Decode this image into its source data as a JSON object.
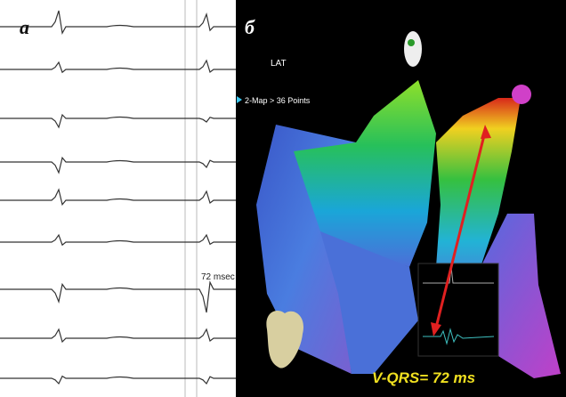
{
  "panel_a": {
    "label": "а",
    "annotation": "72 msec"
  },
  "panel_b": {
    "label": "б",
    "map_title": "LAT",
    "map_info": "2-Map > 36 Points",
    "measurement": "V-QRS= 72 ms"
  }
}
